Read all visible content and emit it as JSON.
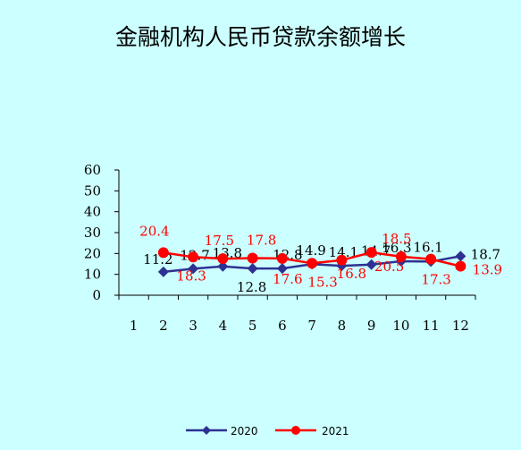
{
  "chart_data": {
    "type": "line",
    "title": "金融机构人民币贷款余额增长",
    "xlabel": "",
    "ylabel": "",
    "categories": [
      "1",
      "2",
      "3",
      "4",
      "5",
      "6",
      "7",
      "8",
      "9",
      "10",
      "11",
      "12"
    ],
    "ylim": [
      0,
      60
    ],
    "yticks": [
      "0",
      "10",
      "20",
      "30",
      "40",
      "50",
      "60"
    ],
    "grid": false,
    "legend_position": "bottom-center",
    "background_color": "#ccffff",
    "series": [
      {
        "name": "2020",
        "color": "#2e3192",
        "marker": "diamond",
        "label_color": "#000000",
        "values": [
          null,
          11.2,
          12.7,
          13.8,
          12.8,
          12.8,
          14.9,
          14.1,
          14.7,
          16.3,
          16.1,
          18.7
        ],
        "labels": [
          "",
          "11.2",
          "12.7",
          "13.8",
          "12.8",
          "12.8",
          "14.9",
          "14.1",
          "14.7",
          "16.3",
          "16.1",
          "18.7"
        ]
      },
      {
        "name": "2021",
        "color": "#ff0000",
        "marker": "circle",
        "label_color": "#ff0000",
        "values": [
          null,
          20.4,
          18.3,
          17.5,
          17.8,
          17.6,
          15.3,
          16.8,
          20.5,
          18.5,
          17.3,
          13.9
        ],
        "labels": [
          "",
          "20.4",
          "18.3",
          "17.5",
          "17.8",
          "17.6",
          "15.3",
          "16.8",
          "20.5",
          "18.5",
          "17.3",
          "13.9"
        ]
      }
    ]
  }
}
